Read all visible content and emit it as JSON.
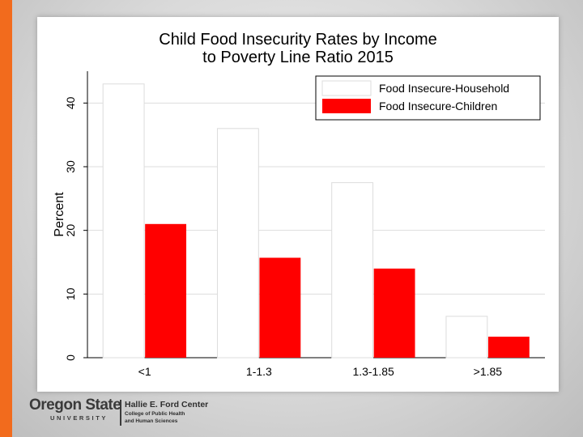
{
  "colors": {
    "accent": "#f26b1d",
    "household_fill": "#ffffff",
    "children_fill": "#ff0000",
    "grid": "#dddddd"
  },
  "chart_data": {
    "type": "bar",
    "title": "Child Food Insecurity Rates by Income to Poverty Line Ratio 2015",
    "title_lines": [
      "Child Food Insecurity Rates by Income",
      "to Poverty Line Ratio 2015"
    ],
    "xlabel": "",
    "ylabel": "Percent",
    "ylim": [
      0,
      45
    ],
    "yticks": [
      0,
      10,
      20,
      30,
      40
    ],
    "grid": true,
    "legend_position": "top-right",
    "categories": [
      "<1",
      "1-1.3",
      "1.3-1.85",
      ">1.85"
    ],
    "series": [
      {
        "name": "Food Insecure-Household",
        "values": [
          43,
          36,
          27.5,
          6.5
        ],
        "color": "#ffffff"
      },
      {
        "name": "Food Insecure-Children",
        "values": [
          21,
          15.7,
          14,
          3.3
        ],
        "color": "#ff0000"
      }
    ]
  },
  "footer": {
    "university_name": "Oregon State",
    "university_sub": "UNIVERSITY",
    "center_name": "Hallie E. Ford Center",
    "center_sub_1": "College of Public Health",
    "center_sub_2": "and Human Sciences"
  }
}
